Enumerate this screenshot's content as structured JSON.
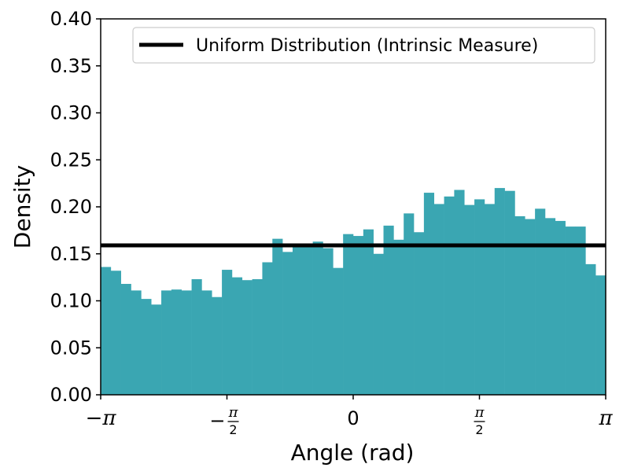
{
  "chart_data": {
    "type": "bar",
    "xlabel": "Angle (rad)",
    "ylabel": "Density",
    "xlim": [
      -3.14159265,
      3.14159265
    ],
    "ylim": [
      0,
      0.4
    ],
    "bins": 50,
    "bar_color": "#3aa6b2",
    "values": [
      0.136,
      0.132,
      0.118,
      0.111,
      0.102,
      0.096,
      0.111,
      0.112,
      0.111,
      0.123,
      0.111,
      0.104,
      0.133,
      0.125,
      0.122,
      0.123,
      0.141,
      0.166,
      0.152,
      0.16,
      0.157,
      0.163,
      0.156,
      0.135,
      0.171,
      0.169,
      0.176,
      0.15,
      0.18,
      0.165,
      0.193,
      0.173,
      0.215,
      0.203,
      0.211,
      0.218,
      0.202,
      0.208,
      0.203,
      0.22,
      0.217,
      0.19,
      0.187,
      0.198,
      0.188,
      0.185,
      0.179,
      0.179,
      0.139,
      0.127
    ],
    "reference_line": {
      "value": 0.159,
      "color": "#000000",
      "legend": "Uniform Distribution (Intrinsic Measure)"
    },
    "legend_position": "top-right",
    "grid": false,
    "y_ticks": [
      "0.00",
      "0.05",
      "0.10",
      "0.15",
      "0.20",
      "0.25",
      "0.30",
      "0.35",
      "0.40"
    ],
    "x_ticks": [
      {
        "value": -3.14159265,
        "label": "−π"
      },
      {
        "value": -1.5707963,
        "label": "−",
        "frac_top": "π",
        "frac_bottom": "2"
      },
      {
        "value": 0,
        "label": "0"
      },
      {
        "value": 1.5707963,
        "frac_top": "π",
        "frac_bottom": "2"
      },
      {
        "value": 3.14159265,
        "label": "π"
      }
    ]
  }
}
